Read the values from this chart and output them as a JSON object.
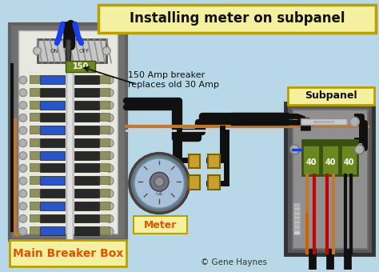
{
  "title": "Installing meter on subpanel",
  "title_bg": "#f5f0a0",
  "title_border": "#b8a000",
  "bg_color": "#b8d8e8",
  "label_main": "Main Breaker Box",
  "label_meter": "Meter",
  "label_subpanel": "Subpanel",
  "label_breaker": "150 Amp breaker\nreplaces old 30 Amp",
  "label_copyright": "© Gene Haynes",
  "label_150": "150",
  "label_40a": "40",
  "box_main_outer": "#606060",
  "box_main_inner": "#e8e8e0",
  "box_sub_outer": "#505050",
  "box_sub_inner": "#808080",
  "breaker_gray": "#b8b8b8",
  "breaker_hatch": "#999999",
  "slot_blue": "#2855c8",
  "slot_dark": "#282828",
  "wire_black": "#101010",
  "wire_red": "#cc0000",
  "wire_copper": "#c07830",
  "wire_blue": "#1840e8",
  "green_breaker": "#6a8820",
  "yellow_bg": "#f5f0a0",
  "meter_outer": "#707070",
  "meter_inner": "#a8c0d8",
  "connector_gold": "#c8a030",
  "neutral_bar": "#c8c8c8",
  "screw_gray": "#b0b0b0",
  "busbar_white": "#e0e0e0",
  "slot_green": "#909060"
}
